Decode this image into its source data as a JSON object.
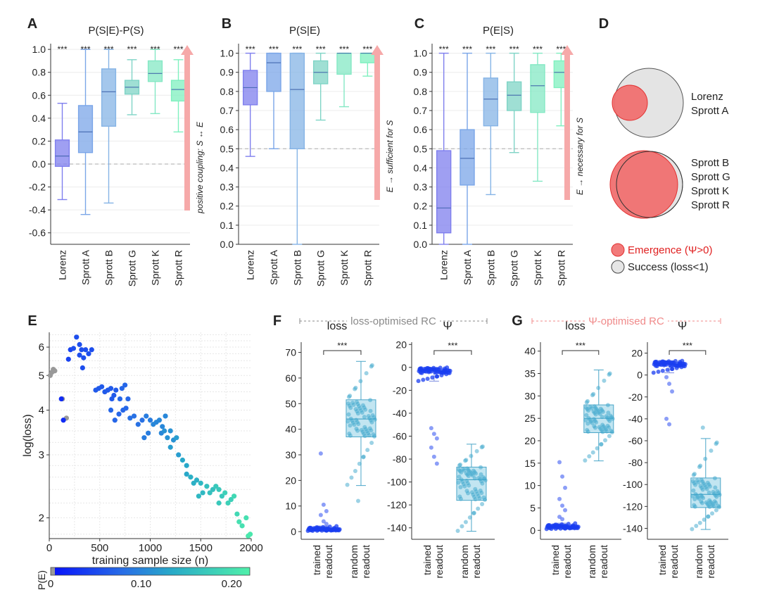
{
  "panel_letters": [
    "A",
    "B",
    "C",
    "D",
    "E",
    "F",
    "G"
  ],
  "categories": [
    "Lorenz",
    "Sprott A",
    "Sprott B",
    "Sprott G",
    "Sprott K",
    "Sprott R"
  ],
  "category_colors": [
    "#7f7fee",
    "#7ba6e8",
    "#86b4e6",
    "#7fd4c6",
    "#84e8c4",
    "#7ff0bf"
  ],
  "significance": "***",
  "chart_data": [
    {
      "type": "box",
      "panel": "A",
      "title": "P(S|E)-P(S)",
      "ylim": [
        -0.7,
        1.05
      ],
      "yticks": [
        -0.6,
        -0.4,
        -0.2,
        0.0,
        0.2,
        0.4,
        0.6,
        0.8,
        1.0
      ],
      "ytick_labels": [
        "-0.6",
        "-0.4",
        "-0.2",
        "0.0",
        "0.2",
        "0.4",
        "0.6",
        "0.8",
        "1.0"
      ],
      "reference_line": 0.0,
      "annotation": "positive coupling: S ↔ E",
      "boxes": [
        {
          "category": "Lorenz",
          "whisker_low": -0.31,
          "q1": -0.02,
          "median": 0.07,
          "q3": 0.21,
          "whisker_high": 0.53
        },
        {
          "category": "Sprott A",
          "whisker_low": -0.44,
          "q1": 0.1,
          "median": 0.28,
          "q3": 0.51,
          "whisker_high": 1.0
        },
        {
          "category": "Sprott B",
          "whisker_low": -0.34,
          "q1": 0.33,
          "median": 0.63,
          "q3": 0.83,
          "whisker_high": 1.0
        },
        {
          "category": "Sprott G",
          "whisker_low": 0.43,
          "q1": 0.61,
          "median": 0.67,
          "q3": 0.73,
          "whisker_high": 0.91
        },
        {
          "category": "Sprott K",
          "whisker_low": 0.44,
          "q1": 0.72,
          "median": 0.79,
          "q3": 0.9,
          "whisker_high": 1.0
        },
        {
          "category": "Sprott R",
          "whisker_low": 0.28,
          "q1": 0.55,
          "median": 0.65,
          "q3": 0.73,
          "whisker_high": 0.91
        }
      ]
    },
    {
      "type": "box",
      "panel": "B",
      "title": "P(S|E)",
      "ylim": [
        0.0,
        1.05
      ],
      "yticks": [
        0.0,
        0.1,
        0.2,
        0.3,
        0.4,
        0.5,
        0.6,
        0.7,
        0.8,
        0.9,
        1.0
      ],
      "ytick_labels": [
        "0.0",
        "0.1",
        "0.2",
        "0.3",
        "0.4",
        "0.5",
        "0.6",
        "0.7",
        "0.8",
        "0.9",
        "1.0"
      ],
      "reference_line": 0.5,
      "annotation": "E → sufficient for S",
      "boxes": [
        {
          "category": "Lorenz",
          "whisker_low": 0.46,
          "q1": 0.73,
          "median": 0.82,
          "q3": 0.91,
          "whisker_high": 1.0
        },
        {
          "category": "Sprott A",
          "whisker_low": 0.5,
          "q1": 0.8,
          "median": 0.95,
          "q3": 1.0,
          "whisker_high": 1.0
        },
        {
          "category": "Sprott B",
          "whisker_low": 0.0,
          "q1": 0.5,
          "median": 0.81,
          "q3": 1.0,
          "whisker_high": 1.0
        },
        {
          "category": "Sprott G",
          "whisker_low": 0.65,
          "q1": 0.84,
          "median": 0.9,
          "q3": 0.96,
          "whisker_high": 1.0
        },
        {
          "category": "Sprott K",
          "whisker_low": 0.72,
          "q1": 0.89,
          "median": 1.0,
          "q3": 1.0,
          "whisker_high": 1.0
        },
        {
          "category": "Sprott R",
          "whisker_low": 0.88,
          "q1": 0.95,
          "median": 1.0,
          "q3": 1.0,
          "whisker_high": 1.0
        }
      ]
    },
    {
      "type": "box",
      "panel": "C",
      "title": "P(E|S)",
      "ylim": [
        0.0,
        1.05
      ],
      "yticks": [
        0.0,
        0.1,
        0.2,
        0.3,
        0.4,
        0.5,
        0.6,
        0.7,
        0.8,
        0.9,
        1.0
      ],
      "ytick_labels": [
        "0.0",
        "0.1",
        "0.2",
        "0.3",
        "0.4",
        "0.5",
        "0.6",
        "0.7",
        "0.8",
        "0.9",
        "1.0"
      ],
      "reference_line": 0.5,
      "annotation": "E → necessary for S",
      "boxes": [
        {
          "category": "Lorenz",
          "whisker_low": 0.0,
          "q1": 0.06,
          "median": 0.19,
          "q3": 0.49,
          "whisker_high": 1.0
        },
        {
          "category": "Sprott A",
          "whisker_low": 0.0,
          "q1": 0.31,
          "median": 0.45,
          "q3": 0.6,
          "whisker_high": 1.0
        },
        {
          "category": "Sprott B",
          "whisker_low": 0.26,
          "q1": 0.62,
          "median": 0.76,
          "q3": 0.87,
          "whisker_high": 1.0
        },
        {
          "category": "Sprott G",
          "whisker_low": 0.48,
          "q1": 0.7,
          "median": 0.78,
          "q3": 0.85,
          "whisker_high": 1.0
        },
        {
          "category": "Sprott K",
          "whisker_low": 0.33,
          "q1": 0.69,
          "median": 0.83,
          "q3": 0.94,
          "whisker_high": 1.0
        },
        {
          "category": "Sprott R",
          "whisker_low": 0.62,
          "q1": 0.82,
          "median": 0.9,
          "q3": 0.96,
          "whisker_high": 1.0
        }
      ]
    },
    {
      "type": "venn",
      "panel": "D",
      "groups": [
        {
          "labels": [
            "Lorenz",
            "Sprott A"
          ],
          "emergence_share": 0.4
        },
        {
          "labels": [
            "Sprott B",
            "Sprott G",
            "Sprott K",
            "Sprott R"
          ],
          "emergence_share": 1.0
        }
      ],
      "legend": [
        {
          "label": "Emergence (Ψ>0)",
          "color": "#f27a7a",
          "text_color": "#e02020"
        },
        {
          "label": "Success (loss<1)",
          "color": "#e6e6e6",
          "text_color": "#222222"
        }
      ]
    },
    {
      "type": "scatter",
      "panel": "E",
      "xlabel": "training sample size (n)",
      "ylabel": "log(loss)",
      "xlim": [
        0,
        2000
      ],
      "xticks": [
        0,
        500,
        1000,
        1500,
        2000
      ],
      "ylim": [
        1.75,
        6.6
      ],
      "yscale": "log",
      "yticks": [
        2,
        3,
        4,
        5,
        6
      ],
      "colorbar": {
        "label": "P(E)",
        "range": [
          0,
          0.22
        ],
        "ticks": [
          0,
          0.1,
          0.2
        ],
        "tick_labels": [
          "0",
          "0.10",
          "0.20"
        ]
      },
      "points": [
        [
          10,
          5.0,
          0
        ],
        [
          25,
          5.1,
          0
        ],
        [
          40,
          5.2,
          0
        ],
        [
          55,
          5.15,
          0
        ],
        [
          130,
          4.3,
          0
        ],
        [
          170,
          3.8,
          0
        ],
        [
          140,
          3.75,
          0.02
        ],
        [
          120,
          4.3,
          0.02
        ],
        [
          190,
          5.55,
          0.04
        ],
        [
          210,
          5.9,
          0.04
        ],
        [
          240,
          5.95,
          0.05
        ],
        [
          270,
          6.4,
          0.05
        ],
        [
          300,
          6.1,
          0.05
        ],
        [
          320,
          5.9,
          0.05
        ],
        [
          340,
          5.6,
          0.05
        ],
        [
          360,
          5.9,
          0.05
        ],
        [
          390,
          5.75,
          0.05
        ],
        [
          420,
          5.9,
          0.05
        ],
        [
          330,
          5.25,
          0.05
        ],
        [
          300,
          5.7,
          0.05
        ],
        [
          460,
          4.55,
          0.06
        ],
        [
          490,
          4.6,
          0.06
        ],
        [
          520,
          4.65,
          0.06
        ],
        [
          550,
          4.5,
          0.06
        ],
        [
          580,
          4.55,
          0.06
        ],
        [
          610,
          4.6,
          0.06
        ],
        [
          640,
          4.4,
          0.06
        ],
        [
          660,
          4.55,
          0.06
        ],
        [
          700,
          4.3,
          0.07
        ],
        [
          720,
          4.6,
          0.07
        ],
        [
          750,
          4.7,
          0.07
        ],
        [
          780,
          4.3,
          0.07
        ],
        [
          620,
          4.3,
          0.06
        ],
        [
          610,
          4.0,
          0.07
        ],
        [
          650,
          3.75,
          0.07
        ],
        [
          690,
          3.9,
          0.07
        ],
        [
          730,
          4.0,
          0.07
        ],
        [
          760,
          4.05,
          0.07
        ],
        [
          800,
          3.8,
          0.08
        ],
        [
          840,
          3.85,
          0.08
        ],
        [
          880,
          3.65,
          0.08
        ],
        [
          920,
          3.75,
          0.08
        ],
        [
          940,
          3.35,
          0.09
        ],
        [
          980,
          3.45,
          0.09
        ],
        [
          960,
          3.85,
          0.09
        ],
        [
          1000,
          3.75,
          0.09
        ],
        [
          1030,
          3.65,
          0.1
        ],
        [
          1060,
          3.7,
          0.1
        ],
        [
          1090,
          3.75,
          0.1
        ],
        [
          1120,
          3.6,
          0.1
        ],
        [
          1150,
          3.85,
          0.1
        ],
        [
          1110,
          3.45,
          0.1
        ],
        [
          1140,
          3.5,
          0.11
        ],
        [
          1170,
          3.35,
          0.11
        ],
        [
          1200,
          3.5,
          0.11
        ],
        [
          1230,
          3.3,
          0.11
        ],
        [
          1260,
          3.35,
          0.12
        ],
        [
          1200,
          3.15,
          0.12
        ],
        [
          1280,
          3.0,
          0.12
        ],
        [
          1320,
          2.9,
          0.13
        ],
        [
          1360,
          2.8,
          0.13
        ],
        [
          1400,
          2.6,
          0.14
        ],
        [
          1430,
          2.5,
          0.14
        ],
        [
          1460,
          2.55,
          0.14
        ],
        [
          1360,
          2.65,
          0.13
        ],
        [
          1480,
          2.3,
          0.15
        ],
        [
          1500,
          2.5,
          0.15
        ],
        [
          1520,
          2.35,
          0.15
        ],
        [
          1560,
          2.45,
          0.16
        ],
        [
          1590,
          2.35,
          0.16
        ],
        [
          1620,
          2.4,
          0.16
        ],
        [
          1650,
          2.45,
          0.17
        ],
        [
          1680,
          2.4,
          0.17
        ],
        [
          1710,
          2.3,
          0.17
        ],
        [
          1740,
          2.35,
          0.18
        ],
        [
          1770,
          2.2,
          0.18
        ],
        [
          1800,
          2.25,
          0.18
        ],
        [
          1830,
          2.3,
          0.19
        ],
        [
          1680,
          2.2,
          0.17
        ],
        [
          1860,
          2.05,
          0.19
        ],
        [
          1880,
          1.95,
          0.2
        ],
        [
          1910,
          1.9,
          0.2
        ],
        [
          1950,
          2.0,
          0.2
        ],
        [
          1970,
          1.78,
          0.21
        ],
        [
          1990,
          1.8,
          0.21
        ]
      ]
    },
    {
      "type": "box_strip",
      "panel": "F",
      "group_title": "loss-optimised RC",
      "group_color": "#8a8a8a",
      "subplots": [
        {
          "title": "loss",
          "ylim": [
            -3,
            74
          ],
          "yticks": [
            0,
            10,
            20,
            30,
            40,
            50,
            60,
            70
          ],
          "categories": [
            "trained readout",
            "random readout"
          ],
          "boxes": [
            {
              "category": "trained readout",
              "whisker_low": 0.3,
              "q1": 0.5,
              "median": 0.9,
              "q3": 1.4,
              "whisker_high": 2.2,
              "outliers": [
                30.5,
                10.5,
                8.0,
                6.5,
                4.0,
                3.0
              ]
            },
            {
              "category": "random readout",
              "whisker_low": 18.0,
              "q1": 37.0,
              "median": 44.0,
              "q3": 51.5,
              "whisker_high": 66.5,
              "outliers": [
                12.0
              ]
            }
          ]
        },
        {
          "title": "Ψ",
          "ylim": [
            -150,
            22
          ],
          "yticks": [
            20,
            0,
            -20,
            -40,
            -60,
            -80,
            -100,
            -120,
            -140
          ],
          "categories": [
            "trained readout",
            "random readout"
          ],
          "boxes": [
            {
              "category": "trained readout",
              "whisker_low": -12,
              "q1": -5,
              "median": -3,
              "q3": -1,
              "whisker_high": 0,
              "outliers": [
                -53,
                -58,
                -62,
                -70,
                -78,
                -84
              ]
            },
            {
              "category": "random readout",
              "whisker_low": -143,
              "q1": -116,
              "median": -98,
              "q3": -87,
              "whisker_high": -67,
              "outliers": []
            }
          ]
        }
      ]
    },
    {
      "type": "box_strip",
      "panel": "G",
      "group_title": "Ψ-optimised RC",
      "group_color": "#f08a8a",
      "subplots": [
        {
          "title": "loss",
          "ylim": [
            -2,
            42
          ],
          "yticks": [
            0,
            5,
            10,
            15,
            20,
            25,
            30,
            35,
            40
          ],
          "categories": [
            "trained readout",
            "random readout"
          ],
          "boxes": [
            {
              "category": "trained readout",
              "whisker_low": 0.3,
              "q1": 0.5,
              "median": 0.8,
              "q3": 1.1,
              "whisker_high": 1.6,
              "outliers": [
                15.2,
                12.0,
                9.5,
                7.0,
                5.5,
                4.5,
                3.0,
                2.5
              ]
            },
            {
              "category": "random readout",
              "whisker_low": 15.5,
              "q1": 21.8,
              "median": 25.0,
              "q3": 28.0,
              "whisker_high": 35.8,
              "outliers": []
            }
          ]
        },
        {
          "title": "Ψ",
          "ylim": [
            -150,
            30
          ],
          "yticks": [
            20,
            0,
            -20,
            -40,
            -60,
            -80,
            -100,
            -120,
            -140
          ],
          "categories": [
            "trained readout",
            "random readout"
          ],
          "boxes": [
            {
              "category": "trained readout",
              "whisker_low": 2,
              "q1": 8,
              "median": 10,
              "q3": 12,
              "whisker_high": 13,
              "outliers": [
                -2,
                -8,
                -15,
                -40,
                -45
              ]
            },
            {
              "category": "random readout",
              "whisker_low": -141,
              "q1": -121,
              "median": -109,
              "q3": -94,
              "whisker_high": -58,
              "outliers": [
                -48
              ]
            }
          ]
        }
      ]
    }
  ]
}
